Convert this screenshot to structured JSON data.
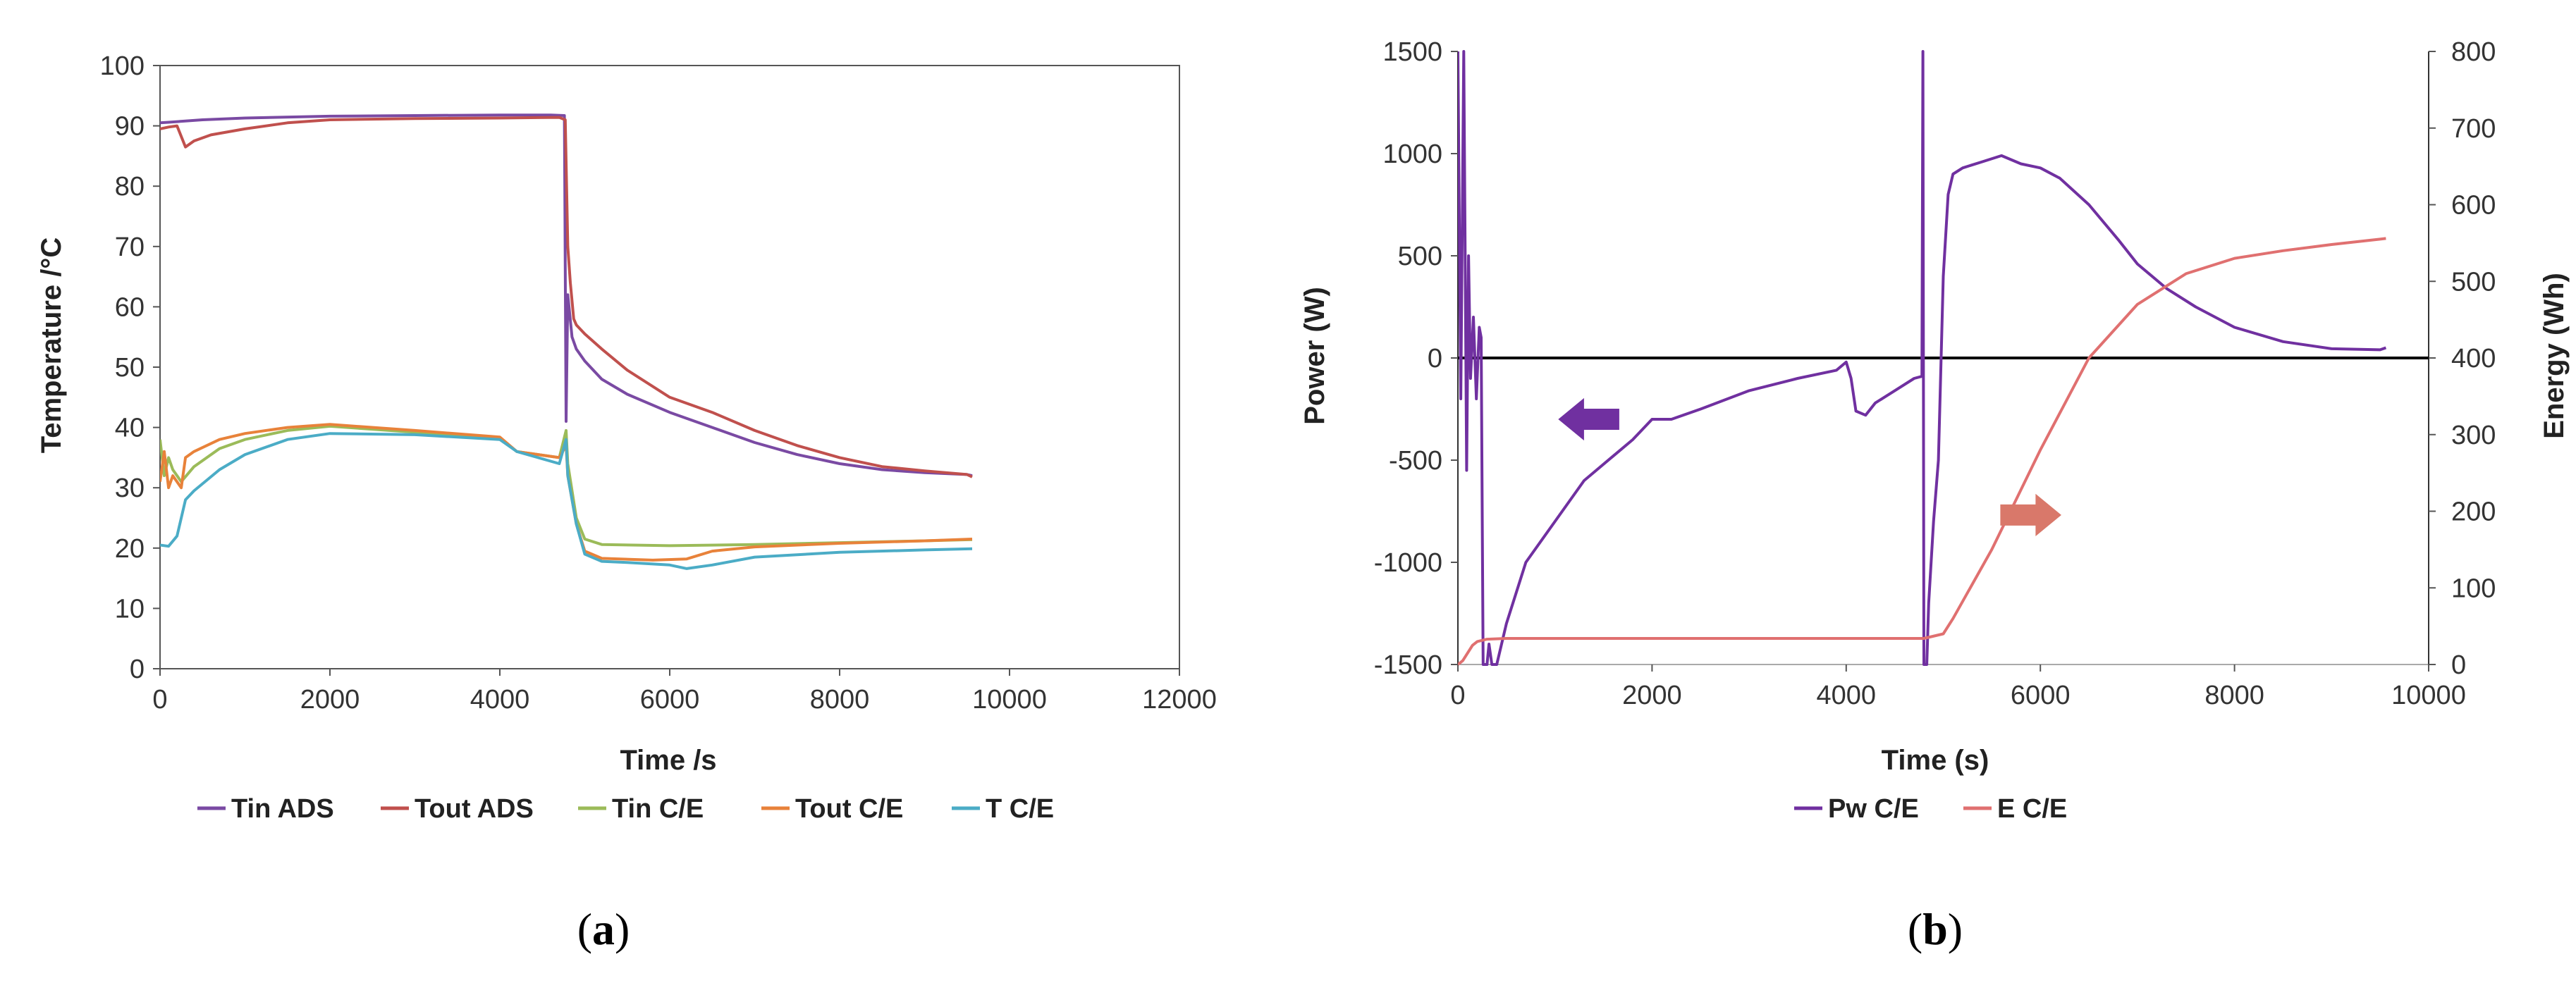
{
  "chart_data": [
    {
      "panel": "a",
      "type": "line",
      "caption": {
        "open": "(",
        "letter": "a",
        "close": ")"
      },
      "xlabel": "Time /s",
      "ylabel": "Temperature /°C",
      "xlim": [
        0,
        12000
      ],
      "ylim": [
        0,
        100
      ],
      "xticks": [
        0,
        2000,
        4000,
        6000,
        8000,
        10000,
        12000
      ],
      "yticks": [
        0,
        10,
        20,
        30,
        40,
        50,
        60,
        70,
        80,
        90,
        100
      ],
      "series": [
        {
          "name": "Tin ADS",
          "color": "#7a4aa3",
          "x": [
            0,
            100,
            500,
            1000,
            2000,
            3000,
            4000,
            4600,
            4760,
            4780,
            4800,
            4850,
            4900,
            5000,
            5200,
            5500,
            6000,
            6500,
            7000,
            7500,
            8000,
            8500,
            9000,
            9500,
            9560
          ],
          "y": [
            90.5,
            90.6,
            91,
            91.3,
            91.6,
            91.7,
            91.8,
            91.8,
            91.7,
            41,
            62,
            55,
            53,
            51,
            48,
            45.5,
            42.5,
            40,
            37.5,
            35.5,
            34,
            33,
            32.5,
            32.2,
            32
          ]
        },
        {
          "name": "Tout ADS",
          "color": "#c0504d",
          "x": [
            0,
            100,
            200,
            300,
            400,
            600,
            1000,
            1500,
            2000,
            3000,
            4000,
            4700,
            4770,
            4800,
            4830,
            4870,
            4900,
            5000,
            5200,
            5500,
            6000,
            6500,
            7000,
            7500,
            8000,
            8500,
            9000,
            9500,
            9560
          ],
          "y": [
            89.5,
            89.8,
            90,
            86.5,
            87.5,
            88.5,
            89.5,
            90.5,
            91,
            91.2,
            91.3,
            91.4,
            91,
            70,
            64,
            58,
            57,
            55.5,
            53,
            49.5,
            45,
            42.5,
            39.5,
            37,
            35,
            33.5,
            32.8,
            32.2,
            31.8
          ]
        },
        {
          "name": "Tin C/E",
          "color": "#9bbb59",
          "x": [
            0,
            50,
            100,
            150,
            250,
            400,
            700,
            1000,
            1500,
            2000,
            3000,
            4000,
            4200,
            4700,
            4780,
            4800,
            4900,
            5000,
            5200,
            6000,
            7000,
            8000,
            9000,
            9560
          ],
          "y": [
            38,
            32,
            35,
            33,
            31,
            33.5,
            36.5,
            38,
            39.5,
            40.2,
            39.2,
            38.2,
            36,
            35,
            39.5,
            34,
            25,
            21.5,
            20.6,
            20.4,
            20.6,
            20.9,
            21.2,
            21.4
          ]
        },
        {
          "name": "Tout C/E",
          "color": "#e8823a",
          "x": [
            0,
            50,
            100,
            150,
            250,
            300,
            400,
            700,
            1000,
            1500,
            2000,
            3000,
            4000,
            4200,
            4700,
            4780,
            4800,
            4900,
            5000,
            5200,
            5800,
            6200,
            6500,
            7000,
            8000,
            9000,
            9560
          ],
          "y": [
            31,
            36,
            30,
            32,
            30,
            35,
            36,
            38,
            39,
            40,
            40.5,
            39.5,
            38.4,
            36,
            35,
            37,
            32,
            24,
            19.5,
            18.3,
            18,
            18.2,
            19.5,
            20.2,
            20.8,
            21.2,
            21.5
          ]
        },
        {
          "name": "T C/E",
          "color": "#4bacc6",
          "x": [
            0,
            100,
            200,
            300,
            400,
            700,
            1000,
            1500,
            2000,
            3000,
            4000,
            4200,
            4700,
            4780,
            4800,
            4900,
            5000,
            5200,
            5500,
            6000,
            6200,
            6500,
            7000,
            8000,
            9000,
            9560
          ],
          "y": [
            20.5,
            20.3,
            22,
            28,
            29.5,
            33,
            35.5,
            38,
            39,
            38.8,
            38,
            36,
            34,
            38,
            32,
            24,
            19,
            17.8,
            17.6,
            17.2,
            16.6,
            17.2,
            18.5,
            19.3,
            19.7,
            19.9
          ]
        }
      ]
    },
    {
      "panel": "b",
      "type": "line",
      "caption": {
        "open": "(",
        "letter": "b",
        "close": ")"
      },
      "xlabel": "Time (s)",
      "ylabel": "Power (W)",
      "y2label": "Energy (Wh)",
      "xlim": [
        0,
        10000
      ],
      "ylim": [
        -1500,
        1500
      ],
      "y2lim": [
        0,
        800
      ],
      "xticks": [
        0,
        2000,
        4000,
        6000,
        8000,
        10000
      ],
      "yticks": [
        -1500,
        -1000,
        -500,
        0,
        500,
        1000,
        1500
      ],
      "y2ticks": [
        0,
        100,
        200,
        300,
        400,
        500,
        600,
        700,
        800
      ],
      "arrows": [
        {
          "direction": "left",
          "axis": "primary",
          "x": 1350,
          "y": -300,
          "color": "#7030a0"
        },
        {
          "direction": "right",
          "axis": "secondary",
          "x": 5900,
          "y": 195,
          "color": "#d9786a"
        }
      ],
      "series": [
        {
          "name": "Pw C/E",
          "color": "#7030a0",
          "axis": "primary",
          "x": [
            0,
            30,
            60,
            90,
            110,
            130,
            160,
            190,
            220,
            240,
            260,
            280,
            300,
            320,
            350,
            400,
            500,
            700,
            1000,
            1300,
            1600,
            1800,
            2000,
            2200,
            2500,
            3000,
            3500,
            3900,
            4000,
            4050,
            4100,
            4200,
            4300,
            4500,
            4700,
            4780,
            4790,
            4800,
            4810,
            4820,
            4830,
            4850,
            4900,
            4950,
            5000,
            5050,
            5100,
            5200,
            5400,
            5600,
            5800,
            6000,
            6200,
            6500,
            6800,
            7000,
            7300,
            7600,
            8000,
            8500,
            9000,
            9500,
            9560
          ],
          "y": [
            1500,
            -200,
            1500,
            -550,
            500,
            -100,
            200,
            -200,
            150,
            100,
            -1500,
            -1500,
            -1500,
            -1400,
            -1500,
            -1500,
            -1300,
            -1000,
            -800,
            -600,
            -480,
            -400,
            -300,
            -300,
            -250,
            -160,
            -100,
            -60,
            -20,
            -100,
            -260,
            -280,
            -220,
            -160,
            -100,
            -90,
            1500,
            -1500,
            -1500,
            -1500,
            -1500,
            -1200,
            -800,
            -500,
            400,
            800,
            900,
            930,
            960,
            990,
            950,
            930,
            880,
            750,
            580,
            460,
            340,
            250,
            150,
            80,
            45,
            40,
            50
          ]
        },
        {
          "name": "E C/E",
          "color": "#e07070",
          "axis": "secondary",
          "x": [
            0,
            50,
            100,
            150,
            200,
            300,
            500,
            1000,
            2000,
            3000,
            4000,
            4800,
            5000,
            5100,
            5500,
            6000,
            6500,
            7000,
            7500,
            8000,
            8500,
            9000,
            9500,
            9560
          ],
          "y": [
            0,
            5,
            15,
            25,
            30,
            33,
            34,
            34,
            34,
            34,
            34,
            34,
            40,
            60,
            150,
            280,
            400,
            470,
            510,
            530,
            540,
            548,
            555,
            556
          ]
        }
      ]
    }
  ]
}
